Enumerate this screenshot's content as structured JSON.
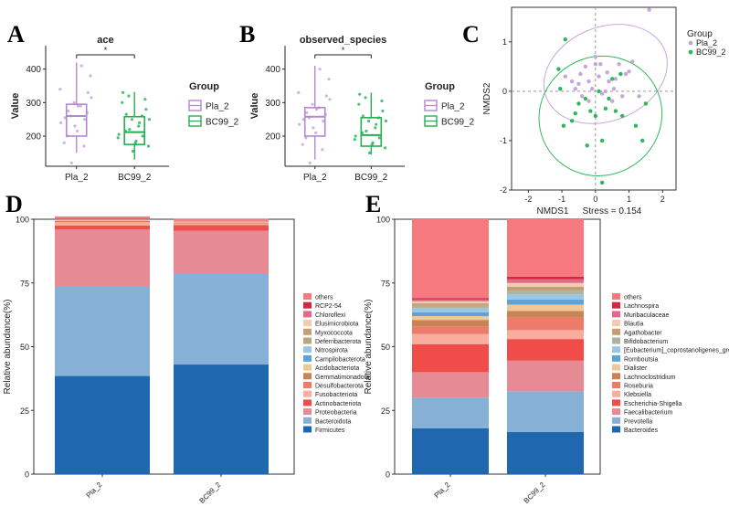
{
  "panels": {
    "A": "A",
    "B": "B",
    "C": "C",
    "D": "D",
    "E": "E"
  },
  "colors": {
    "Pla_2": "#c8a6dc",
    "Pla_2_box": "#b487d1",
    "BC99_2": "#2db85a",
    "BC99_2_box": "#27ae4f"
  },
  "chart_data": [
    {
      "id": "A",
      "type": "box",
      "title": "ace",
      "xlabel": "",
      "ylabel": "Value",
      "categories": [
        "Pla_2",
        "BC99_2"
      ],
      "ylim": [
        110,
        470
      ],
      "yticks": [
        200,
        300,
        400
      ],
      "boxes": [
        {
          "name": "Pla_2",
          "min": 150,
          "q1": 200,
          "median": 260,
          "q3": 295,
          "max": 420
        },
        {
          "name": "BC99_2",
          "min": 130,
          "q1": 175,
          "median": 212,
          "q3": 258,
          "max": 332
        }
      ],
      "points": [
        [
          340,
          380,
          270,
          170,
          290,
          215,
          300,
          260,
          200,
          180,
          240,
          315,
          330,
          250,
          410,
          290,
          230,
          120,
          275,
          255
        ],
        [
          195,
          170,
          310,
          260,
          230,
          180,
          250,
          320,
          215,
          300,
          205,
          250,
          280,
          200,
          240,
          185,
          155,
          220,
          265,
          330
        ]
      ],
      "significance": "*",
      "legend": {
        "title": "Group",
        "entries": [
          "Pla_2",
          "BC99_2"
        ]
      }
    },
    {
      "id": "B",
      "type": "box",
      "title": "observed_species",
      "xlabel": "",
      "ylabel": "Value",
      "categories": [
        "Pla_2",
        "BC99_2"
      ],
      "ylim": [
        110,
        470
      ],
      "yticks": [
        200,
        300,
        400
      ],
      "boxes": [
        {
          "name": "Pla_2",
          "min": 130,
          "q1": 200,
          "median": 258,
          "q3": 285,
          "max": 410
        },
        {
          "name": "BC99_2",
          "min": 145,
          "q1": 170,
          "median": 203,
          "q3": 255,
          "max": 330
        }
      ],
      "points": [
        [
          330,
          370,
          265,
          160,
          285,
          210,
          295,
          255,
          195,
          175,
          235,
          310,
          320,
          245,
          400,
          280,
          225,
          120,
          270,
          250
        ],
        [
          190,
          165,
          305,
          255,
          225,
          175,
          245,
          315,
          210,
          295,
          200,
          245,
          275,
          195,
          235,
          180,
          150,
          215,
          260,
          325
        ]
      ],
      "significance": "*",
      "legend": {
        "title": "Group",
        "entries": [
          "Pla_2",
          "BC99_2"
        ]
      }
    },
    {
      "id": "C",
      "type": "scatter",
      "title": "",
      "xlabel": "NMDS1",
      "stress": "Stress = 0.154",
      "ylabel": "NMDS2",
      "xlim": [
        -2.5,
        2.4
      ],
      "ylim": [
        -2.0,
        1.7
      ],
      "xticks": [
        -2,
        -1,
        0,
        1,
        2
      ],
      "yticks": [
        -2,
        -1,
        0,
        1
      ],
      "series": [
        {
          "name": "Pla_2",
          "points": [
            [
              1.6,
              1.65
            ],
            [
              0.35,
              0.38
            ],
            [
              0.0,
              0.55
            ],
            [
              -0.3,
              0.5
            ],
            [
              0.1,
              0.3
            ],
            [
              -0.2,
              0.2
            ],
            [
              -0.5,
              0.15
            ],
            [
              -0.6,
              0.05
            ],
            [
              0.4,
              0.2
            ],
            [
              0.6,
              0.25
            ],
            [
              0.9,
              0.35
            ],
            [
              1.0,
              0.4
            ],
            [
              0.8,
              -0.1
            ],
            [
              0.2,
              -0.05
            ],
            [
              -0.1,
              0.05
            ],
            [
              -0.7,
              0.2
            ],
            [
              0.5,
              -0.2
            ],
            [
              1.3,
              -0.1
            ],
            [
              0.0,
              0.7
            ],
            [
              0.3,
              0.0
            ],
            [
              -0.4,
              -0.1
            ],
            [
              0.15,
              0.55
            ],
            [
              1.1,
              0.6
            ],
            [
              -0.9,
              0.3
            ],
            [
              0.7,
              0.55
            ],
            [
              -0.2,
              -0.2
            ],
            [
              0.55,
              0.05
            ],
            [
              -0.45,
              0.35
            ]
          ]
        },
        {
          "name": "BC99_2",
          "points": [
            [
              -0.9,
              1.05
            ],
            [
              -1.1,
              0.45
            ],
            [
              -1.05,
              0.05
            ],
            [
              -0.95,
              -0.7
            ],
            [
              -0.6,
              -0.45
            ],
            [
              -0.3,
              -0.15
            ],
            [
              0.0,
              -0.5
            ],
            [
              0.3,
              -0.35
            ],
            [
              0.6,
              -0.4
            ],
            [
              0.75,
              0.35
            ],
            [
              0.5,
              0.25
            ],
            [
              1.2,
              -0.7
            ],
            [
              1.4,
              -1.0
            ],
            [
              -0.25,
              -1.1
            ],
            [
              0.2,
              -1.0
            ],
            [
              0.1,
              0.0
            ],
            [
              -0.5,
              -0.25
            ],
            [
              0.8,
              -0.5
            ],
            [
              0.4,
              -0.15
            ],
            [
              -0.15,
              -0.4
            ],
            [
              0.2,
              -1.85
            ],
            [
              1.5,
              -0.25
            ],
            [
              -0.7,
              -0.6
            ]
          ]
        }
      ],
      "ellipses": [
        {
          "name": "Pla_2",
          "cx": 0.3,
          "cy": 0.35,
          "rx": 1.9,
          "ry": 0.95,
          "angle": -22
        },
        {
          "name": "BC99_2",
          "cx": 0.15,
          "cy": -0.5,
          "rx": 1.85,
          "ry": 1.2,
          "angle": -28
        }
      ],
      "legend": {
        "title": "Group",
        "entries": [
          "Pla_2",
          "BC99_2"
        ]
      }
    },
    {
      "id": "D",
      "type": "bar",
      "stacked": true,
      "title": "",
      "xlabel": "",
      "ylabel": "Relative abundance(%)",
      "categories": [
        "Pla_2",
        "BC99_2"
      ],
      "ylim": [
        0,
        100
      ],
      "yticks": [
        0,
        25,
        50,
        75,
        100
      ],
      "series": [
        {
          "name": "Firmicutes",
          "color": "#1f67ae",
          "values": [
            38.5,
            43
          ]
        },
        {
          "name": "Bacteroidota",
          "color": "#86b0d6",
          "values": [
            35,
            35.5
          ]
        },
        {
          "name": "Proteobacteria",
          "color": "#e68a93",
          "values": [
            22.5,
            17
          ]
        },
        {
          "name": "Actinobacteriota",
          "color": "#f04d4a",
          "values": [
            1.5,
            2.2
          ]
        },
        {
          "name": "Fusobacteriota",
          "color": "#f8ad9e",
          "values": [
            1.3,
            0.4
          ]
        },
        {
          "name": "Desulfobacterota",
          "color": "#ec7b6a",
          "values": [
            0.3,
            0.3
          ]
        },
        {
          "name": "Gemmatimonadota",
          "color": "#c98456",
          "values": [
            0.2,
            0.1
          ]
        },
        {
          "name": "Acidobacteriota",
          "color": "#edc99a",
          "values": [
            0.1,
            0.1
          ]
        },
        {
          "name": "Campilobacterota",
          "color": "#5da3d8",
          "values": [
            0.1,
            0.1
          ]
        },
        {
          "name": "Nitrospirota",
          "color": "#9ac6e6",
          "values": [
            0.1,
            0.1
          ]
        },
        {
          "name": "Deferribacterota",
          "color": "#b7a77e",
          "values": [
            0.1,
            0.1
          ]
        },
        {
          "name": "Myxococcota",
          "color": "#c59f73",
          "values": [
            0.1,
            0.1
          ]
        },
        {
          "name": "Elusimicrobiota",
          "color": "#eecdb0",
          "values": [
            0.1,
            0.1
          ]
        },
        {
          "name": "Chloroflexi",
          "color": "#e2698a",
          "values": [
            0.1,
            0.1
          ]
        },
        {
          "name": "RCP2-54",
          "color": "#d02a3e",
          "values": [
            0.1,
            0.1
          ]
        },
        {
          "name": "others",
          "color": "#f5797e",
          "values": [
            1.0,
            0.8
          ]
        }
      ]
    },
    {
      "id": "E",
      "type": "bar",
      "stacked": true,
      "title": "",
      "xlabel": "",
      "ylabel": "Relative abundance(%)",
      "categories": [
        "Pla_2",
        "BC99_2"
      ],
      "ylim": [
        0,
        100
      ],
      "yticks": [
        0,
        25,
        50,
        75,
        100
      ],
      "series": [
        {
          "name": "Bacteroides",
          "color": "#1f67ae",
          "values": [
            18,
            16.5
          ]
        },
        {
          "name": "Prevotella",
          "color": "#86b0d6",
          "values": [
            12,
            16
          ]
        },
        {
          "name": "Faecalibacterium",
          "color": "#e68a93",
          "values": [
            10,
            12
          ]
        },
        {
          "name": "Escherichia-Shigella",
          "color": "#f04d4a",
          "values": [
            11,
            8.5
          ]
        },
        {
          "name": "Klebsiella",
          "color": "#f8ad9e",
          "values": [
            4,
            3.5
          ]
        },
        {
          "name": "Roseburia",
          "color": "#ec7b6a",
          "values": [
            3,
            5
          ]
        },
        {
          "name": "Lachnoclostridium",
          "color": "#c98456",
          "values": [
            2.5,
            2.5
          ]
        },
        {
          "name": "Dialister",
          "color": "#edc99a",
          "values": [
            1.5,
            2.5
          ]
        },
        {
          "name": "Romboutsia",
          "color": "#5da3d8",
          "values": [
            1.5,
            2
          ]
        },
        {
          "name": "[Eubacterium]_coprostanoligenes_group",
          "color": "#9ac6e6",
          "values": [
            1.5,
            2
          ]
        },
        {
          "name": "Bifidobacterium",
          "color": "#a9b5a0",
          "values": [
            1,
            1.5
          ]
        },
        {
          "name": "Agathobacter",
          "color": "#c59f73",
          "values": [
            1,
            1.5
          ]
        },
        {
          "name": "Blautia",
          "color": "#eecdb0",
          "values": [
            0.8,
            1.5
          ]
        },
        {
          "name": "Muribaculaceae",
          "color": "#e2698a",
          "values": [
            0.7,
            1.5
          ]
        },
        {
          "name": "Lachnospira",
          "color": "#d02a3e",
          "values": [
            0.5,
            1
          ]
        },
        {
          "name": "others",
          "color": "#f5797e",
          "values": [
            31,
            22.5
          ]
        }
      ]
    }
  ]
}
